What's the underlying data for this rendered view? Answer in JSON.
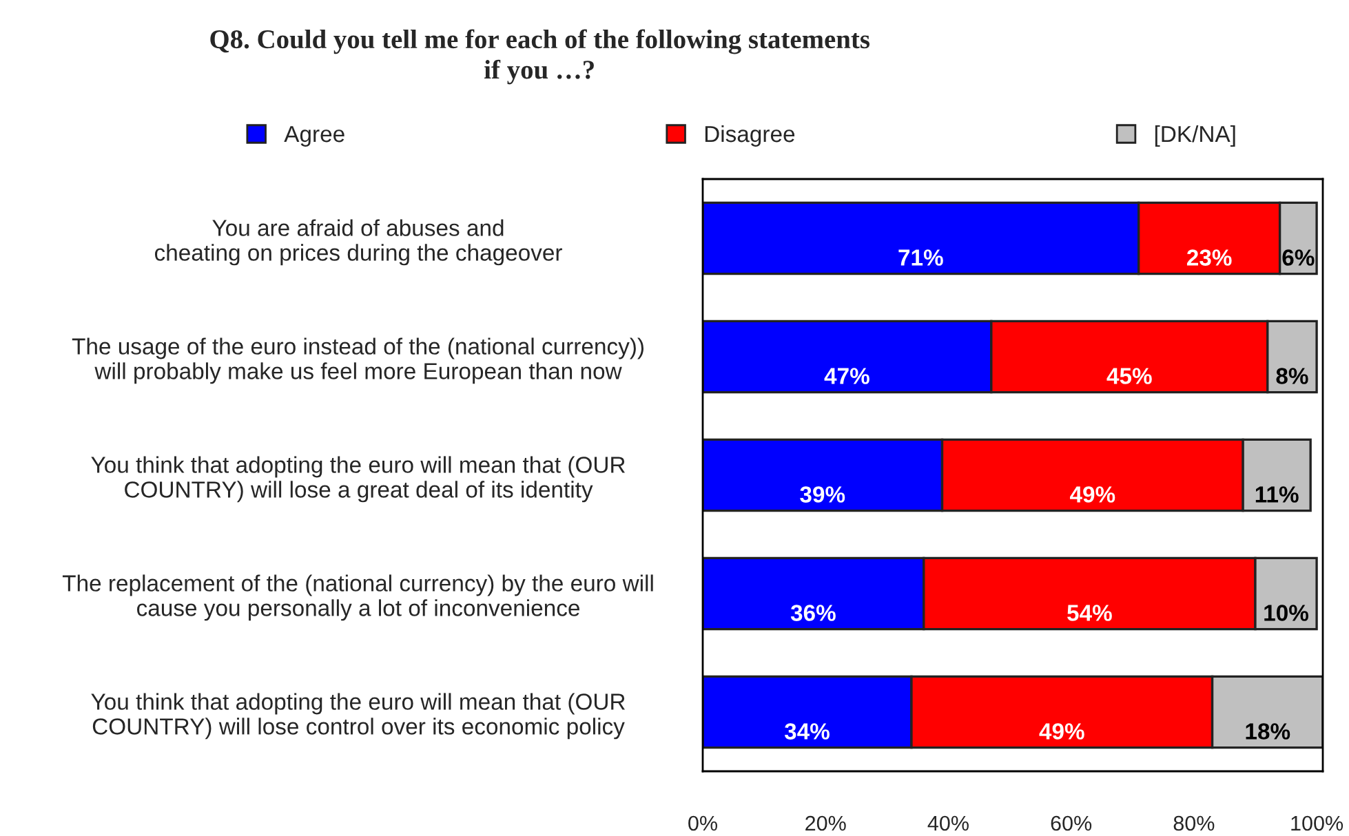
{
  "chart_data": {
    "type": "bar",
    "orientation": "horizontal",
    "stacked": true,
    "title": "Q8. Could you tell me for each of the following statements\nif you …?",
    "categories": [
      "You are afraid of abuses and\ncheating on prices during the chageover",
      "The usage of the euro instead of the (national currency))\nwill probably make us feel more European than now",
      "You think that adopting the euro will mean that (OUR\nCOUNTRY) will lose a great deal of its identity",
      "The replacement of the (national currency) by the euro will\ncause you personally a lot of inconvenience",
      "You think that adopting the euro will mean that (OUR\nCOUNTRY) will lose control over its economic policy"
    ],
    "series": [
      {
        "name": "Agree",
        "color": "#0000ff",
        "values": [
          71,
          47,
          39,
          36,
          34
        ],
        "value_labels": [
          "71%",
          "47%",
          "39%",
          "36%",
          "34%"
        ]
      },
      {
        "name": "Disagree",
        "color": "#ff0000",
        "values": [
          23,
          45,
          49,
          54,
          49
        ],
        "value_labels": [
          "23%",
          "45%",
          "49%",
          "54%",
          "49%"
        ]
      },
      {
        "name": "[DK/NA]",
        "color": "#c0c0c0",
        "values": [
          6,
          8,
          11,
          10,
          18
        ],
        "value_labels": [
          "6%",
          "8%",
          "11%",
          "10%",
          "18%"
        ]
      }
    ],
    "xlim": [
      0,
      101
    ],
    "xticks": [
      {
        "value": 0,
        "label": "0%"
      },
      {
        "value": 20,
        "label": "20%"
      },
      {
        "value": 40,
        "label": "40%"
      },
      {
        "value": 60,
        "label": "60%"
      },
      {
        "value": 80,
        "label": "80%"
      },
      {
        "value": 100,
        "label": "100%"
      }
    ],
    "grid": false,
    "legend": "top"
  }
}
